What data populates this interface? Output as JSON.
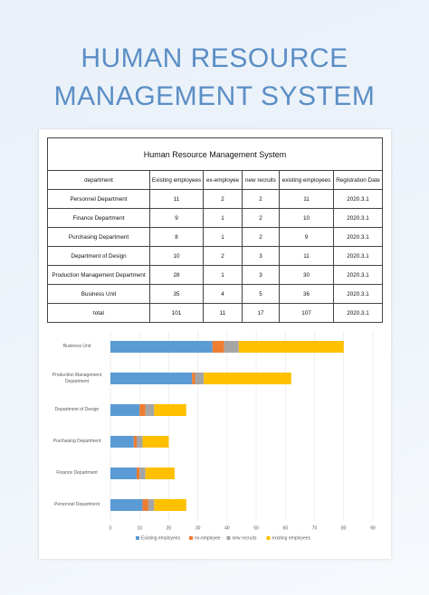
{
  "header": {
    "title_lines": [
      "HUMAN RESOURCE",
      "MANAGEMENT SYSTEM"
    ]
  },
  "table": {
    "title": "Human Resource Management System",
    "columns": [
      "department",
      "Existing employees",
      "ex-employee",
      "new recruits",
      "existing employees",
      "Registration Date"
    ],
    "rows": [
      [
        "Personnel Department",
        11,
        2,
        2,
        11,
        "2020.3.1"
      ],
      [
        "Finance Department",
        9,
        1,
        2,
        10,
        "2020.3.1"
      ],
      [
        "Purchasing Department",
        8,
        1,
        2,
        9,
        "2020.3.1"
      ],
      [
        "Department of Design",
        10,
        2,
        3,
        11,
        "2020.3.1"
      ],
      [
        "Production Management Department",
        28,
        1,
        3,
        30,
        "2020.3.1"
      ],
      [
        "Business Unit",
        35,
        4,
        5,
        36,
        "2020.3.1"
      ],
      [
        "total",
        101,
        11,
        17,
        107,
        "2020.3.1"
      ]
    ]
  },
  "chart_data": {
    "type": "bar",
    "orientation": "horizontal",
    "stacked": true,
    "categories": [
      "Personnel Department",
      "Finance Department",
      "Purchasing Department",
      "Department of Design",
      "Production Management Department",
      "Business Unit"
    ],
    "series": [
      {
        "name": "Existing employees",
        "color": "#5b9bd5",
        "values": [
          11,
          9,
          8,
          10,
          28,
          35
        ]
      },
      {
        "name": "ex-employee",
        "color": "#ed7d31",
        "values": [
          2,
          1,
          1,
          2,
          1,
          4
        ]
      },
      {
        "name": "new recruits",
        "color": "#a5a5a5",
        "values": [
          2,
          2,
          2,
          3,
          3,
          5
        ]
      },
      {
        "name": "existing employees",
        "color": "#ffc000",
        "values": [
          11,
          10,
          9,
          11,
          30,
          36
        ]
      }
    ],
    "xlim": [
      0,
      90
    ],
    "xticks": [
      0,
      10,
      20,
      30,
      40,
      50,
      60,
      70,
      80,
      90
    ],
    "grid": true,
    "legend": "bottom"
  }
}
